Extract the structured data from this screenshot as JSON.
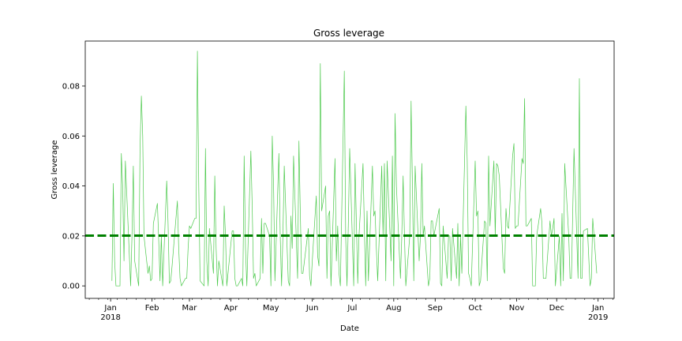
{
  "chart_data": {
    "type": "line",
    "title": "Gross leverage",
    "xlabel": "Date",
    "ylabel": "Gross leverage",
    "x_range": [
      "2017-12-13",
      "2019-01-13"
    ],
    "ylim": [
      -0.005,
      0.098
    ],
    "grid": false,
    "legend": "none",
    "x_ticks": [
      {
        "date": "2018-01-01",
        "label": "Jan",
        "sublabel": "2018"
      },
      {
        "date": "2018-02-01",
        "label": "Feb",
        "sublabel": ""
      },
      {
        "date": "2018-03-01",
        "label": "Mar",
        "sublabel": ""
      },
      {
        "date": "2018-04-01",
        "label": "Apr",
        "sublabel": ""
      },
      {
        "date": "2018-05-01",
        "label": "May",
        "sublabel": ""
      },
      {
        "date": "2018-06-01",
        "label": "Jun",
        "sublabel": ""
      },
      {
        "date": "2018-07-01",
        "label": "Jul",
        "sublabel": ""
      },
      {
        "date": "2018-08-01",
        "label": "Aug",
        "sublabel": ""
      },
      {
        "date": "2018-09-01",
        "label": "Sep",
        "sublabel": ""
      },
      {
        "date": "2018-10-01",
        "label": "Oct",
        "sublabel": ""
      },
      {
        "date": "2018-11-01",
        "label": "Nov",
        "sublabel": ""
      },
      {
        "date": "2018-12-01",
        "label": "Dec",
        "sublabel": ""
      },
      {
        "date": "2019-01-01",
        "label": "Jan",
        "sublabel": "2019"
      }
    ],
    "y_ticks": [
      {
        "value": 0.0,
        "label": "0.00"
      },
      {
        "value": 0.02,
        "label": "0.02"
      },
      {
        "value": 0.04,
        "label": "0.04"
      },
      {
        "value": 0.06,
        "label": "0.06"
      },
      {
        "value": 0.08,
        "label": "0.08"
      }
    ],
    "mean_line": {
      "value": 0.0201,
      "color": "#008000",
      "style": "dashed"
    },
    "series": [
      {
        "color": "#4cc94c",
        "points": [
          [
            "2018-01-02",
            0.002
          ],
          [
            "2018-01-03",
            0.041
          ],
          [
            "2018-01-04",
            0.01
          ],
          [
            "2018-01-05",
            0.0
          ],
          [
            "2018-01-08",
            0.0
          ],
          [
            "2018-01-09",
            0.053
          ],
          [
            "2018-01-10",
            0.04
          ],
          [
            "2018-01-11",
            0.01
          ],
          [
            "2018-01-12",
            0.05
          ],
          [
            "2018-01-16",
            0.0
          ],
          [
            "2018-01-17",
            0.02
          ],
          [
            "2018-01-18",
            0.048
          ],
          [
            "2018-01-19",
            0.01
          ],
          [
            "2018-01-22",
            0.0
          ],
          [
            "2018-01-23",
            0.055
          ],
          [
            "2018-01-24",
            0.076
          ],
          [
            "2018-01-25",
            0.06
          ],
          [
            "2018-01-26",
            0.02
          ],
          [
            "2018-01-29",
            0.005
          ],
          [
            "2018-01-30",
            0.008
          ],
          [
            "2018-01-31",
            0.002
          ],
          [
            "2018-02-01",
            0.003
          ],
          [
            "2018-02-02",
            0.025
          ],
          [
            "2018-02-05",
            0.033
          ],
          [
            "2018-02-06",
            0.018
          ],
          [
            "2018-02-07",
            0.002
          ],
          [
            "2018-02-08",
            0.02
          ],
          [
            "2018-02-09",
            0.0
          ],
          [
            "2018-02-12",
            0.042
          ],
          [
            "2018-02-13",
            0.025
          ],
          [
            "2018-02-14",
            0.001
          ],
          [
            "2018-02-15",
            0.002
          ],
          [
            "2018-02-16",
            0.008
          ],
          [
            "2018-02-20",
            0.034
          ],
          [
            "2018-02-21",
            0.015
          ],
          [
            "2018-02-22",
            0.003
          ],
          [
            "2018-02-23",
            0.0
          ],
          [
            "2018-02-26",
            0.003
          ],
          [
            "2018-02-27",
            0.003
          ],
          [
            "2018-02-28",
            0.015
          ],
          [
            "2018-03-01",
            0.024
          ],
          [
            "2018-03-02",
            0.023
          ],
          [
            "2018-03-05",
            0.027
          ],
          [
            "2018-03-06",
            0.027
          ],
          [
            "2018-03-07",
            0.094
          ],
          [
            "2018-03-08",
            0.04
          ],
          [
            "2018-03-09",
            0.002
          ],
          [
            "2018-03-12",
            0.0
          ],
          [
            "2018-03-13",
            0.055
          ],
          [
            "2018-03-14",
            0.01
          ],
          [
            "2018-03-15",
            0.0
          ],
          [
            "2018-03-16",
            0.023
          ],
          [
            "2018-03-19",
            0.005
          ],
          [
            "2018-03-20",
            0.044
          ],
          [
            "2018-03-21",
            0.015
          ],
          [
            "2018-03-22",
            0.0
          ],
          [
            "2018-03-23",
            0.01
          ],
          [
            "2018-03-26",
            0.0
          ],
          [
            "2018-03-27",
            0.032
          ],
          [
            "2018-03-28",
            0.02
          ],
          [
            "2018-03-29",
            0.0
          ],
          [
            "2018-04-02",
            0.022
          ],
          [
            "2018-04-03",
            0.022
          ],
          [
            "2018-04-04",
            0.003
          ],
          [
            "2018-04-05",
            0.0
          ],
          [
            "2018-04-06",
            0.0
          ],
          [
            "2018-04-09",
            0.003
          ],
          [
            "2018-04-10",
            0.0
          ],
          [
            "2018-04-11",
            0.052
          ],
          [
            "2018-04-12",
            0.015
          ],
          [
            "2018-04-13",
            0.0
          ],
          [
            "2018-04-16",
            0.054
          ],
          [
            "2018-04-17",
            0.032
          ],
          [
            "2018-04-18",
            0.003
          ],
          [
            "2018-04-19",
            0.005
          ],
          [
            "2018-04-20",
            0.0
          ],
          [
            "2018-04-23",
            0.003
          ],
          [
            "2018-04-24",
            0.027
          ],
          [
            "2018-04-25",
            0.005
          ],
          [
            "2018-04-26",
            0.025
          ],
          [
            "2018-04-27",
            0.025
          ],
          [
            "2018-04-30",
            0.02
          ],
          [
            "2018-05-01",
            0.0
          ],
          [
            "2018-05-02",
            0.06
          ],
          [
            "2018-05-03",
            0.04
          ],
          [
            "2018-05-04",
            0.002
          ],
          [
            "2018-05-07",
            0.053
          ],
          [
            "2018-05-08",
            0.02
          ],
          [
            "2018-05-09",
            0.0
          ],
          [
            "2018-05-10",
            0.02
          ],
          [
            "2018-05-11",
            0.048
          ],
          [
            "2018-05-14",
            0.002
          ],
          [
            "2018-05-15",
            0.0
          ],
          [
            "2018-05-16",
            0.028
          ],
          [
            "2018-05-17",
            0.015
          ],
          [
            "2018-05-18",
            0.052
          ],
          [
            "2018-05-21",
            0.003
          ],
          [
            "2018-05-22",
            0.058
          ],
          [
            "2018-05-23",
            0.03
          ],
          [
            "2018-05-24",
            0.005
          ],
          [
            "2018-05-25",
            0.005
          ],
          [
            "2018-05-29",
            0.023
          ],
          [
            "2018-05-30",
            0.004
          ],
          [
            "2018-05-31",
            0.0
          ],
          [
            "2018-06-01",
            0.01
          ],
          [
            "2018-06-04",
            0.036
          ],
          [
            "2018-06-05",
            0.012
          ],
          [
            "2018-06-06",
            0.008
          ],
          [
            "2018-06-07",
            0.089
          ],
          [
            "2018-06-08",
            0.03
          ],
          [
            "2018-06-11",
            0.04
          ],
          [
            "2018-06-12",
            0.003
          ],
          [
            "2018-06-13",
            0.028
          ],
          [
            "2018-06-14",
            0.03
          ],
          [
            "2018-06-15",
            0.0
          ],
          [
            "2018-06-18",
            0.051
          ],
          [
            "2018-06-19",
            0.01
          ],
          [
            "2018-06-20",
            0.024
          ],
          [
            "2018-06-21",
            0.005
          ],
          [
            "2018-06-22",
            0.0
          ],
          [
            "2018-06-25",
            0.086
          ],
          [
            "2018-06-26",
            0.02
          ],
          [
            "2018-06-27",
            0.0
          ],
          [
            "2018-06-28",
            0.025
          ],
          [
            "2018-06-29",
            0.055
          ],
          [
            "2018-07-02",
            0.0
          ],
          [
            "2018-07-03",
            0.049
          ],
          [
            "2018-07-05",
            0.001
          ],
          [
            "2018-07-06",
            0.02
          ],
          [
            "2018-07-09",
            0.049
          ],
          [
            "2018-07-10",
            0.023
          ],
          [
            "2018-07-11",
            0.0
          ],
          [
            "2018-07-12",
            0.03
          ],
          [
            "2018-07-13",
            0.002
          ],
          [
            "2018-07-16",
            0.048
          ],
          [
            "2018-07-17",
            0.028
          ],
          [
            "2018-07-18",
            0.03
          ],
          [
            "2018-07-19",
            0.015
          ],
          [
            "2018-07-20",
            0.002
          ],
          [
            "2018-07-23",
            0.048
          ],
          [
            "2018-07-24",
            0.02
          ],
          [
            "2018-07-25",
            0.049
          ],
          [
            "2018-07-26",
            0.002
          ],
          [
            "2018-07-27",
            0.05
          ],
          [
            "2018-07-30",
            0.01
          ],
          [
            "2018-07-31",
            0.052
          ],
          [
            "2018-08-01",
            0.0
          ],
          [
            "2018-08-02",
            0.069
          ],
          [
            "2018-08-03",
            0.04
          ],
          [
            "2018-08-06",
            0.003
          ],
          [
            "2018-08-07",
            0.02
          ],
          [
            "2018-08-08",
            0.044
          ],
          [
            "2018-08-09",
            0.02
          ],
          [
            "2018-08-10",
            0.0
          ],
          [
            "2018-08-13",
            0.02
          ],
          [
            "2018-08-14",
            0.074
          ],
          [
            "2018-08-15",
            0.04
          ],
          [
            "2018-08-16",
            0.002
          ],
          [
            "2018-08-17",
            0.048
          ],
          [
            "2018-08-20",
            0.01
          ],
          [
            "2018-08-21",
            0.02
          ],
          [
            "2018-08-22",
            0.049
          ],
          [
            "2018-08-23",
            0.02
          ],
          [
            "2018-08-24",
            0.024
          ],
          [
            "2018-08-27",
            0.0
          ],
          [
            "2018-08-28",
            0.003
          ],
          [
            "2018-08-29",
            0.026
          ],
          [
            "2018-08-30",
            0.026
          ],
          [
            "2018-08-31",
            0.02
          ],
          [
            "2018-09-04",
            0.031
          ],
          [
            "2018-09-05",
            0.001
          ],
          [
            "2018-09-06",
            0.0
          ],
          [
            "2018-09-07",
            0.024
          ],
          [
            "2018-09-10",
            0.003
          ],
          [
            "2018-09-11",
            0.02
          ],
          [
            "2018-09-12",
            0.02
          ],
          [
            "2018-09-13",
            0.002
          ],
          [
            "2018-09-14",
            0.023
          ],
          [
            "2018-09-17",
            0.003
          ],
          [
            "2018-09-18",
            0.025
          ],
          [
            "2018-09-19",
            0.0
          ],
          [
            "2018-09-20",
            0.02
          ],
          [
            "2018-09-21",
            0.005
          ],
          [
            "2018-09-24",
            0.072
          ],
          [
            "2018-09-25",
            0.05
          ],
          [
            "2018-09-26",
            0.005
          ],
          [
            "2018-09-27",
            0.003
          ],
          [
            "2018-09-28",
            0.0
          ],
          [
            "2018-10-01",
            0.05
          ],
          [
            "2018-10-02",
            0.028
          ],
          [
            "2018-10-03",
            0.03
          ],
          [
            "2018-10-04",
            0.0
          ],
          [
            "2018-10-05",
            0.002
          ],
          [
            "2018-10-08",
            0.026
          ],
          [
            "2018-10-09",
            0.025
          ],
          [
            "2018-10-10",
            0.002
          ],
          [
            "2018-10-11",
            0.052
          ],
          [
            "2018-10-12",
            0.024
          ],
          [
            "2018-10-15",
            0.05
          ],
          [
            "2018-10-16",
            0.02
          ],
          [
            "2018-10-17",
            0.049
          ],
          [
            "2018-10-18",
            0.048
          ],
          [
            "2018-10-19",
            0.044
          ],
          [
            "2018-10-22",
            0.007
          ],
          [
            "2018-10-23",
            0.005
          ],
          [
            "2018-10-24",
            0.031
          ],
          [
            "2018-10-25",
            0.024
          ],
          [
            "2018-10-26",
            0.023
          ],
          [
            "2018-10-29",
            0.052
          ],
          [
            "2018-10-30",
            0.057
          ],
          [
            "2018-10-31",
            0.023
          ],
          [
            "2018-11-01",
            0.024
          ],
          [
            "2018-11-02",
            0.024
          ],
          [
            "2018-11-05",
            0.051
          ],
          [
            "2018-11-06",
            0.049
          ],
          [
            "2018-11-07",
            0.075
          ],
          [
            "2018-11-08",
            0.024
          ],
          [
            "2018-11-09",
            0.024
          ],
          [
            "2018-11-12",
            0.027
          ],
          [
            "2018-11-13",
            0.0
          ],
          [
            "2018-11-14",
            0.0
          ],
          [
            "2018-11-15",
            0.0
          ],
          [
            "2018-11-16",
            0.02
          ],
          [
            "2018-11-19",
            0.031
          ],
          [
            "2018-11-20",
            0.025
          ],
          [
            "2018-11-21",
            0.003
          ],
          [
            "2018-11-23",
            0.003
          ],
          [
            "2018-11-26",
            0.026
          ],
          [
            "2018-11-27",
            0.02
          ],
          [
            "2018-11-28",
            0.023
          ],
          [
            "2018-11-29",
            0.027
          ],
          [
            "2018-11-30",
            0.0
          ],
          [
            "2018-12-03",
            0.02
          ],
          [
            "2018-12-04",
            0.0
          ],
          [
            "2018-12-05",
            0.029
          ],
          [
            "2018-12-06",
            0.002
          ],
          [
            "2018-12-07",
            0.049
          ],
          [
            "2018-12-10",
            0.02
          ],
          [
            "2018-12-11",
            0.003
          ],
          [
            "2018-12-12",
            0.003
          ],
          [
            "2018-12-13",
            0.03
          ],
          [
            "2018-12-14",
            0.055
          ],
          [
            "2018-12-17",
            0.003
          ],
          [
            "2018-12-18",
            0.083
          ],
          [
            "2018-12-19",
            0.003
          ],
          [
            "2018-12-20",
            0.003
          ],
          [
            "2018-12-21",
            0.022
          ],
          [
            "2018-12-24",
            0.023
          ],
          [
            "2018-12-26",
            0.0
          ],
          [
            "2018-12-27",
            0.003
          ],
          [
            "2018-12-28",
            0.027
          ],
          [
            "2018-12-31",
            0.005
          ]
        ]
      }
    ]
  }
}
